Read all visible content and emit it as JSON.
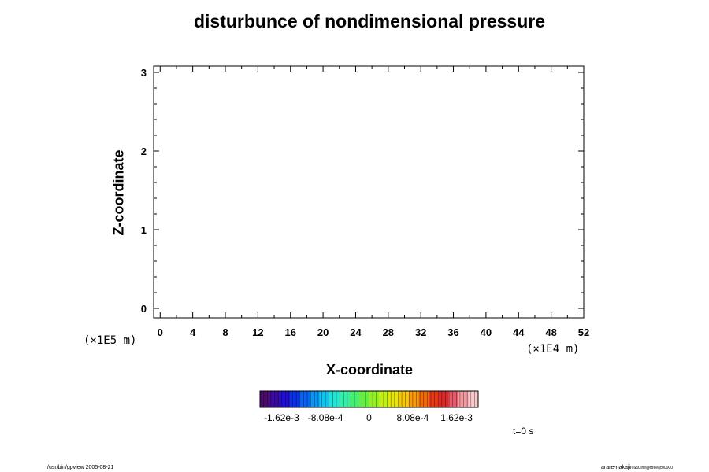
{
  "chart_data": {
    "type": "heatmap",
    "title": "disturbunce of nondimensional pressure",
    "xlabel": "X-coordinate",
    "ylabel": "Z-coordinate",
    "x_unit": "(×1E4 m)",
    "y_unit": "(×1E5 m)",
    "xlim": [
      -0.8,
      52
    ],
    "ylim": [
      -0.12,
      3.08
    ],
    "x_ticks": [
      "0",
      "4",
      "8",
      "12",
      "16",
      "20",
      "24",
      "28",
      "32",
      "36",
      "40",
      "44",
      "48",
      "52"
    ],
    "y_ticks": [
      "0",
      "1",
      "2",
      "3"
    ],
    "x_tick_values": [
      0,
      4,
      8,
      12,
      16,
      20,
      24,
      28,
      32,
      36,
      40,
      44,
      48,
      52
    ],
    "y_tick_values": [
      0,
      1,
      2,
      3
    ],
    "values": [],
    "colorbar": {
      "labels": [
        "-1.62e-3",
        "-8.08e-4",
        "0",
        "8.08e-4",
        "1.62e-3"
      ],
      "label_values": [
        -0.00162,
        -0.000808,
        0,
        0.000808,
        0.00162
      ],
      "range": [
        -0.00202,
        0.00202
      ],
      "colors": [
        "#4b0d6b",
        "#3a0a9e",
        "#1f0fd0",
        "#0a32e6",
        "#0a64f0",
        "#0a96f5",
        "#10c4f0",
        "#20e6d8",
        "#30f0a8",
        "#40f070",
        "#60f040",
        "#90f020",
        "#c0f010",
        "#e6e60a",
        "#f5c80a",
        "#f59a0a",
        "#f06a0a",
        "#e63a14",
        "#dc2a2a",
        "#e85a6a",
        "#f09aa0",
        "#f8c8cc"
      ]
    }
  },
  "time_label": "t=0 s",
  "footer_left": "/usr/bin/gpview 2005-08-21",
  "footer_right_main": "arare-nakajima",
  "footer_right_sub": "Cine@ttree/jc00000"
}
